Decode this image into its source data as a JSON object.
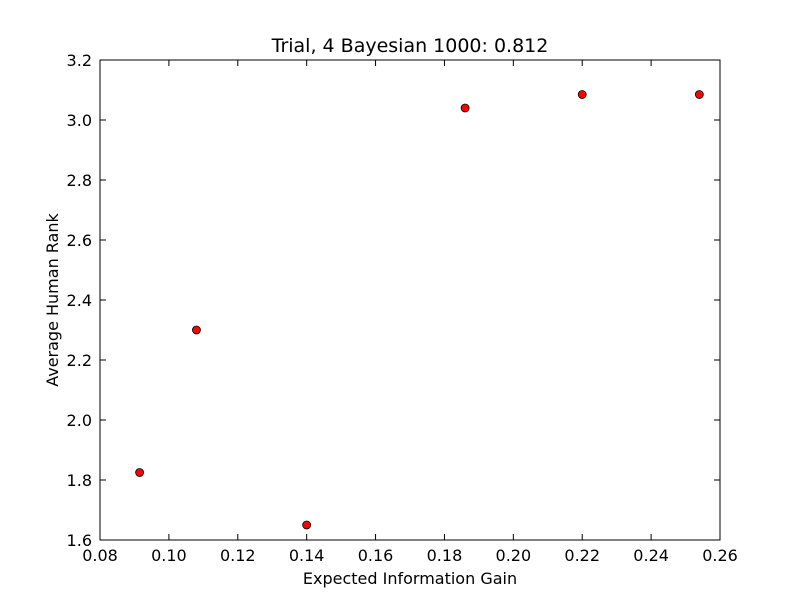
{
  "chart_data": {
    "type": "scatter",
    "title": "Trial, 4 Bayesian 1000: 0.812",
    "xlabel": "Expected Information Gain",
    "ylabel": "Average Human Rank",
    "xlim": [
      0.08,
      0.26
    ],
    "ylim": [
      1.6,
      3.2
    ],
    "x_ticks": [
      "0.08",
      "0.10",
      "0.12",
      "0.14",
      "0.16",
      "0.18",
      "0.20",
      "0.22",
      "0.24",
      "0.26"
    ],
    "y_ticks": [
      "1.6",
      "1.8",
      "2.0",
      "2.2",
      "2.4",
      "2.6",
      "2.8",
      "3.0",
      "3.2"
    ],
    "grid": false,
    "marker_color": "#ff0000",
    "points": [
      {
        "x": 0.0915,
        "y": 1.825
      },
      {
        "x": 0.108,
        "y": 2.3
      },
      {
        "x": 0.14,
        "y": 1.65
      },
      {
        "x": 0.186,
        "y": 3.04
      },
      {
        "x": 0.22,
        "y": 3.085
      },
      {
        "x": 0.254,
        "y": 3.085
      }
    ]
  }
}
